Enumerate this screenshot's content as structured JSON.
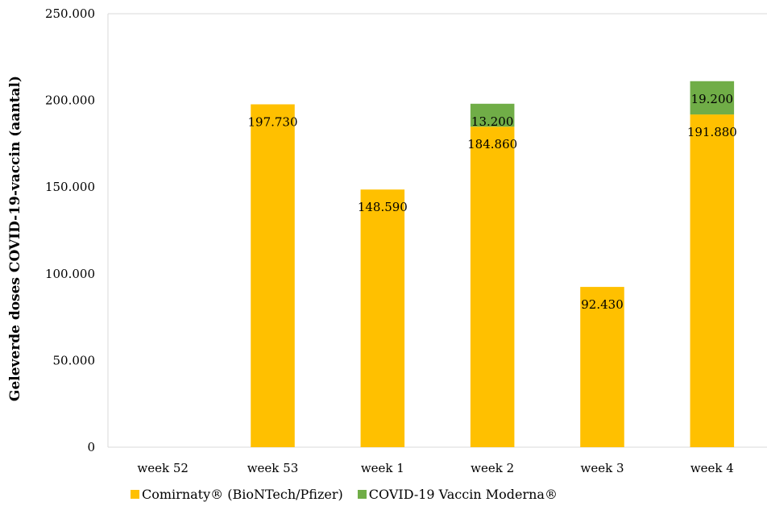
{
  "chart_data": {
    "type": "bar",
    "stacked": true,
    "categories": [
      "week 52",
      "week 53",
      "week 1",
      "week 2",
      "week 3",
      "week 4"
    ],
    "series": [
      {
        "name": "Comirnaty® (BioNTech/Pfizer)",
        "color": "#FFC000",
        "values": [
          0,
          197730,
          148590,
          184860,
          92430,
          191880
        ],
        "labels": [
          "",
          "197.730",
          "148.590",
          "184.860",
          "92.430",
          "191.880"
        ]
      },
      {
        "name": "COVID-19 Vaccin Moderna®",
        "color": "#70AD47",
        "values": [
          0,
          0,
          0,
          13200,
          0,
          19200
        ],
        "labels": [
          "",
          "",
          "",
          "13.200",
          "",
          "19.200"
        ]
      }
    ],
    "ylabel": "Geleverde doses COVID-19-vaccin (aantal)",
    "xlabel": "",
    "ylim": [
      0,
      250000
    ],
    "yticks": [
      0,
      50000,
      100000,
      150000,
      200000,
      250000
    ],
    "ytick_labels": [
      "0",
      "50.000",
      "100.000",
      "150.000",
      "200.000",
      "250.000"
    ],
    "grid": false,
    "legend_position": "bottom"
  }
}
